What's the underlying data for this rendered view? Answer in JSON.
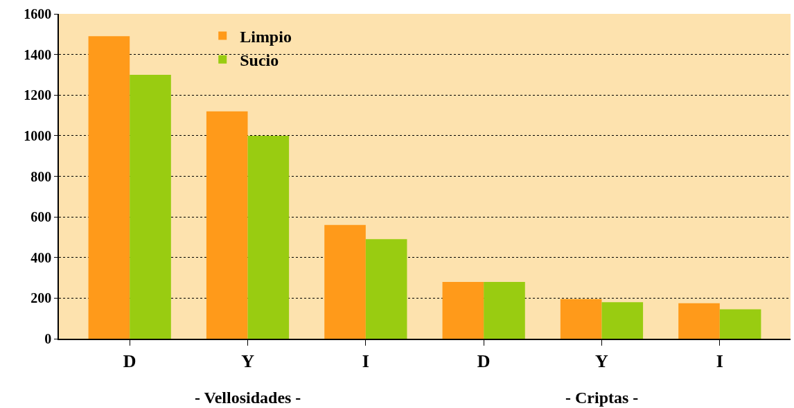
{
  "chart_data": {
    "type": "bar",
    "categories": [
      "D",
      "Y",
      "I",
      "D",
      "Y",
      "I"
    ],
    "series": [
      {
        "name": "Limpio",
        "color": "#ff9a1a",
        "values": [
          1490,
          1120,
          560,
          280,
          195,
          175
        ]
      },
      {
        "name": "Sucio",
        "color": "#99cc11",
        "values": [
          1300,
          1000,
          490,
          280,
          180,
          145
        ]
      }
    ],
    "annotations": [
      "- Vellosidades -",
      "- Criptas -"
    ],
    "ylim": [
      0,
      1600
    ],
    "yticks": [
      0,
      200,
      400,
      600,
      800,
      1000,
      1200,
      1400,
      1600
    ],
    "grid": "y",
    "legend": "top left"
  }
}
